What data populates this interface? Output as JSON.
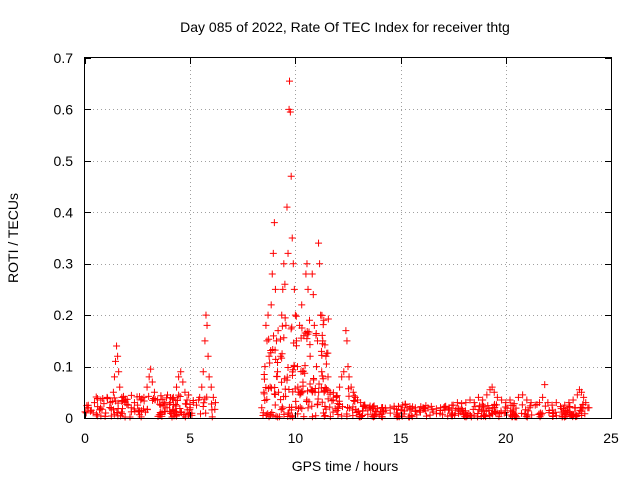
{
  "chart_data": {
    "type": "scatter",
    "title": "Day 085 of 2022, Rate Of TEC Index for receiver thtg",
    "xlabel": "GPS time / hours",
    "ylabel": "ROTI / TECUs",
    "xlim": [
      0,
      25
    ],
    "ylim": [
      0,
      0.7
    ],
    "x_ticks": [
      0,
      5,
      10,
      15,
      20,
      25
    ],
    "y_ticks": [
      0,
      0.1,
      0.2,
      0.3,
      0.4,
      0.5,
      0.6,
      0.7
    ],
    "x_tick_labels": [
      "0",
      "5",
      "10",
      "15",
      "20",
      "25"
    ],
    "y_tick_labels": [
      "0",
      "0.1",
      "0.2",
      "0.3",
      "0.4",
      "0.5",
      "0.6",
      "0.7"
    ],
    "grid": true,
    "marker": "+",
    "color": "#ff0000",
    "series": [
      {
        "name": "ROTI",
        "points": [
          [
            0.0,
            0.012
          ],
          [
            0.15,
            0.02
          ],
          [
            0.3,
            0.015
          ],
          [
            0.45,
            0.03
          ],
          [
            0.6,
            0.022
          ],
          [
            0.75,
            0.035
          ],
          [
            0.9,
            0.028
          ],
          [
            1.05,
            0.04
          ],
          [
            1.2,
            0.03
          ],
          [
            1.35,
            0.05
          ],
          [
            1.4,
            0.08
          ],
          [
            1.45,
            0.11
          ],
          [
            1.5,
            0.14
          ],
          [
            1.55,
            0.12
          ],
          [
            1.6,
            0.09
          ],
          [
            1.65,
            0.06
          ],
          [
            1.75,
            0.04
          ],
          [
            1.9,
            0.03
          ],
          [
            2.05,
            0.025
          ],
          [
            2.2,
            0.02
          ],
          [
            2.35,
            0.03
          ],
          [
            2.5,
            0.025
          ],
          [
            2.65,
            0.035
          ],
          [
            2.8,
            0.04
          ],
          [
            2.95,
            0.06
          ],
          [
            3.05,
            0.08
          ],
          [
            3.12,
            0.095
          ],
          [
            3.2,
            0.07
          ],
          [
            3.3,
            0.05
          ],
          [
            3.45,
            0.035
          ],
          [
            3.6,
            0.025
          ],
          [
            3.75,
            0.03
          ],
          [
            3.9,
            0.02
          ],
          [
            4.05,
            0.03
          ],
          [
            4.2,
            0.04
          ],
          [
            4.35,
            0.06
          ],
          [
            4.45,
            0.08
          ],
          [
            4.55,
            0.09
          ],
          [
            4.65,
            0.07
          ],
          [
            4.75,
            0.05
          ],
          [
            4.85,
            0.035
          ],
          [
            5.0,
            0.02
          ],
          [
            5.15,
            0.03
          ],
          [
            5.3,
            0.025
          ],
          [
            5.45,
            0.04
          ],
          [
            5.55,
            0.06
          ],
          [
            5.62,
            0.09
          ],
          [
            5.7,
            0.15
          ],
          [
            5.75,
            0.2
          ],
          [
            5.8,
            0.18
          ],
          [
            5.85,
            0.12
          ],
          [
            5.9,
            0.08
          ],
          [
            6.0,
            0.06
          ],
          [
            6.1,
            0.04
          ],
          [
            6.2,
            0.03
          ],
          [
            8.4,
            0.02
          ],
          [
            8.5,
            0.05
          ],
          [
            8.55,
            0.1
          ],
          [
            8.6,
            0.18
          ],
          [
            8.65,
            0.15
          ],
          [
            8.7,
            0.2
          ],
          [
            8.75,
            0.12
          ],
          [
            8.8,
            0.06
          ],
          [
            8.85,
            0.22
          ],
          [
            8.9,
            0.28
          ],
          [
            8.95,
            0.32
          ],
          [
            9.0,
            0.38
          ],
          [
            9.05,
            0.25
          ],
          [
            9.1,
            0.15
          ],
          [
            9.15,
            0.09
          ],
          [
            9.2,
            0.05
          ],
          [
            9.3,
            0.12
          ],
          [
            9.35,
            0.2
          ],
          [
            9.4,
            0.25
          ],
          [
            9.45,
            0.3
          ],
          [
            9.5,
            0.26
          ],
          [
            9.55,
            0.18
          ],
          [
            9.6,
            0.41
          ],
          [
            9.65,
            0.32
          ],
          [
            9.7,
            0.6
          ],
          [
            9.72,
            0.655
          ],
          [
            9.76,
            0.595
          ],
          [
            9.8,
            0.47
          ],
          [
            9.85,
            0.35
          ],
          [
            9.9,
            0.3
          ],
          [
            9.95,
            0.25
          ],
          [
            10.0,
            0.2
          ],
          [
            10.05,
            0.15
          ],
          [
            10.1,
            0.1
          ],
          [
            10.2,
            0.18
          ],
          [
            10.3,
            0.22
          ],
          [
            10.4,
            0.16
          ],
          [
            10.5,
            0.28
          ],
          [
            10.55,
            0.3
          ],
          [
            10.6,
            0.25
          ],
          [
            10.7,
            0.12
          ],
          [
            10.8,
            0.28
          ],
          [
            10.85,
            0.24
          ],
          [
            10.9,
            0.18
          ],
          [
            11.0,
            0.1
          ],
          [
            11.05,
            0.15
          ],
          [
            11.1,
            0.34
          ],
          [
            11.15,
            0.3
          ],
          [
            11.2,
            0.2
          ],
          [
            11.25,
            0.09
          ],
          [
            11.3,
            0.15
          ],
          [
            11.35,
            0.19
          ],
          [
            11.45,
            0.12
          ],
          [
            11.55,
            0.08
          ],
          [
            11.65,
            0.05
          ],
          [
            11.8,
            0.035
          ],
          [
            11.95,
            0.04
          ],
          [
            12.1,
            0.06
          ],
          [
            12.2,
            0.08
          ],
          [
            12.3,
            0.09
          ],
          [
            12.4,
            0.17
          ],
          [
            12.45,
            0.15
          ],
          [
            12.5,
            0.1
          ],
          [
            12.55,
            0.08
          ],
          [
            12.65,
            0.06
          ],
          [
            12.75,
            0.05
          ],
          [
            12.85,
            0.04
          ],
          [
            12.95,
            0.035
          ],
          [
            13.1,
            0.03
          ],
          [
            13.3,
            0.025
          ],
          [
            13.5,
            0.02
          ],
          [
            13.7,
            0.022
          ],
          [
            13.9,
            0.018
          ],
          [
            14.1,
            0.02
          ],
          [
            14.3,
            0.015
          ],
          [
            14.5,
            0.02
          ],
          [
            14.7,
            0.018
          ],
          [
            14.9,
            0.022
          ],
          [
            15.1,
            0.025
          ],
          [
            15.3,
            0.02
          ],
          [
            15.5,
            0.018
          ],
          [
            15.7,
            0.02
          ],
          [
            15.9,
            0.015
          ],
          [
            16.1,
            0.018
          ],
          [
            16.3,
            0.02
          ],
          [
            16.5,
            0.016
          ],
          [
            16.7,
            0.018
          ],
          [
            16.9,
            0.02
          ],
          [
            17.1,
            0.022
          ],
          [
            17.3,
            0.02
          ],
          [
            17.5,
            0.025
          ],
          [
            17.7,
            0.03
          ],
          [
            17.9,
            0.028
          ],
          [
            18.1,
            0.03
          ],
          [
            18.3,
            0.035
          ],
          [
            18.5,
            0.03
          ],
          [
            18.7,
            0.04
          ],
          [
            18.9,
            0.035
          ],
          [
            19.1,
            0.045
          ],
          [
            19.25,
            0.055
          ],
          [
            19.35,
            0.06
          ],
          [
            19.45,
            0.05
          ],
          [
            19.6,
            0.04
          ],
          [
            19.8,
            0.035
          ],
          [
            20.0,
            0.03
          ],
          [
            20.2,
            0.035
          ],
          [
            20.4,
            0.028
          ],
          [
            20.6,
            0.04
          ],
          [
            20.8,
            0.045
          ],
          [
            21.0,
            0.035
          ],
          [
            21.2,
            0.03
          ],
          [
            21.4,
            0.025
          ],
          [
            21.6,
            0.03
          ],
          [
            21.75,
            0.04
          ],
          [
            21.85,
            0.065
          ],
          [
            22.0,
            0.03
          ],
          [
            22.2,
            0.025
          ],
          [
            22.4,
            0.03
          ],
          [
            22.6,
            0.022
          ],
          [
            22.8,
            0.025
          ],
          [
            23.0,
            0.03
          ],
          [
            23.2,
            0.035
          ],
          [
            23.4,
            0.045
          ],
          [
            23.5,
            0.055
          ],
          [
            23.6,
            0.05
          ],
          [
            23.7,
            0.04
          ],
          [
            23.8,
            0.03
          ],
          [
            23.9,
            0.02
          ]
        ],
        "bands": [
          {
            "x_start": 0.0,
            "x_end": 6.2,
            "y_min": 0.002,
            "y_max": 0.045
          },
          {
            "x_start": 8.4,
            "x_end": 12.9,
            "y_min": 0.002,
            "y_max": 0.06
          },
          {
            "x_start": 8.5,
            "x_end": 11.6,
            "y_min": 0.05,
            "y_max": 0.2
          },
          {
            "x_start": 12.9,
            "x_end": 24.0,
            "y_min": 0.002,
            "y_max": 0.028
          }
        ]
      }
    ]
  }
}
